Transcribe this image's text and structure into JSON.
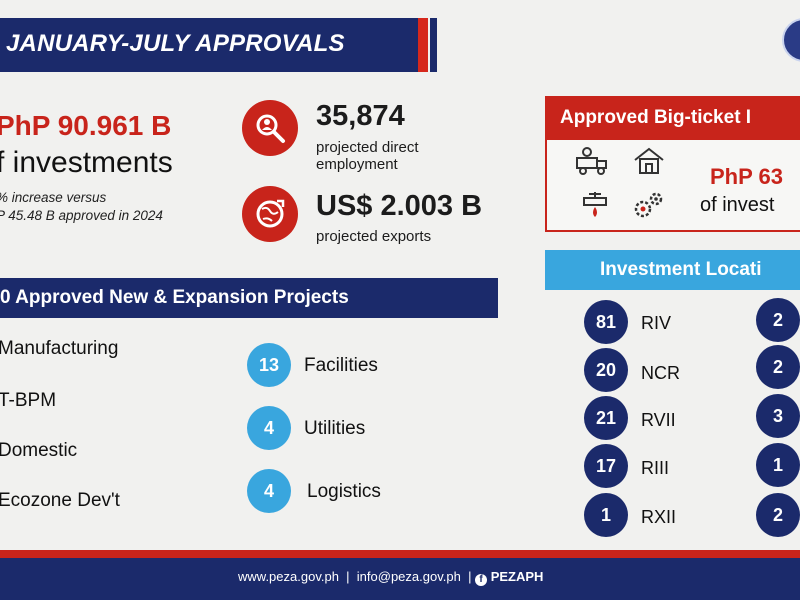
{
  "header": {
    "title": "JANUARY-JULY APPROVALS"
  },
  "investments": {
    "amount": "PhP 90.961 B",
    "label": "f investments",
    "note_line1": "% increase versus",
    "note_line2": "P 45.48 B approved in 2024"
  },
  "employment": {
    "value": "35,874",
    "label": "projected direct employment",
    "icon": "job-search-icon"
  },
  "exports": {
    "value": "US$ 2.003 B",
    "label": "projected exports",
    "icon": "globe-export-icon"
  },
  "projects": {
    "title": "0 Approved New & Expansion Projects",
    "sectors": [
      "Manufacturing",
      "T-BPM",
      "Domestic",
      "Ecozone Dev't"
    ],
    "categories": [
      {
        "count": "13",
        "label": "Facilities"
      },
      {
        "count": "4",
        "label": "Utilities"
      },
      {
        "count": "4",
        "label": "Logistics"
      }
    ]
  },
  "big_ticket": {
    "title": "Approved Big-ticket I",
    "amount": "PhP 63",
    "label": "of invest",
    "icons": [
      "factory-truck-icon",
      "house-icon",
      "water-valve-icon",
      "gears-icon"
    ]
  },
  "locations": {
    "title": "Investment Locati",
    "left": [
      {
        "count": "81",
        "name": "RIV"
      },
      {
        "count": "20",
        "name": "NCR"
      },
      {
        "count": "21",
        "name": "RVII"
      },
      {
        "count": "17",
        "name": "RIII"
      },
      {
        "count": "1",
        "name": "RXII"
      }
    ],
    "right": [
      {
        "count": "2"
      },
      {
        "count": "2"
      },
      {
        "count": "3"
      },
      {
        "count": "1"
      },
      {
        "count": "2"
      }
    ]
  },
  "footer": {
    "website": "www.peza.gov.ph",
    "email": "info@peza.gov.ph",
    "social": "PEZAPH",
    "separator": "|"
  },
  "colors": {
    "navy": "#1b2a6b",
    "red": "#c8241b",
    "sky_blue": "#39a6de",
    "background": "#f1f1ef"
  }
}
